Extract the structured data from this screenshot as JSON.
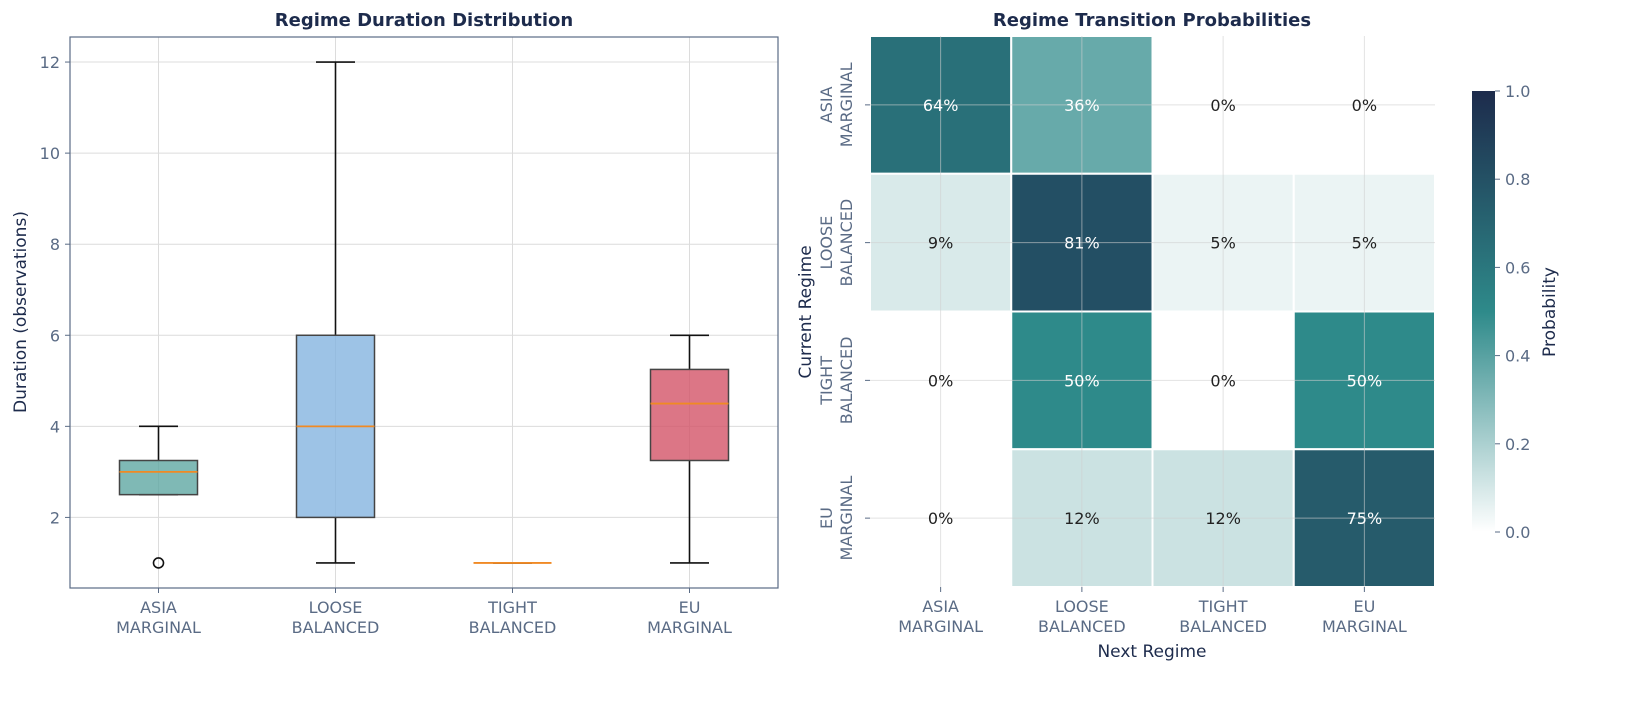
{
  "chart_data": [
    {
      "type": "box",
      "title": "Regime Duration Distribution",
      "xlabel": "",
      "ylabel": "Duration (observations)",
      "ylim": [
        0.45,
        12.55
      ],
      "yticks": [
        2,
        4,
        6,
        8,
        10,
        12
      ],
      "grid": true,
      "categories": [
        [
          "ASIA",
          "MARGINAL"
        ],
        [
          "LOOSE",
          "BALANCED"
        ],
        [
          "TIGHT",
          "BALANCED"
        ],
        [
          "EU",
          "MARGINAL"
        ]
      ],
      "boxes": [
        {
          "whisker_low": 2.5,
          "q1": 2.5,
          "median": 3,
          "q3": 3.25,
          "whisker_high": 4,
          "outliers": [
            1
          ],
          "color": "#5fa8a3"
        },
        {
          "whisker_low": 1,
          "q1": 2,
          "median": 4,
          "q3": 6,
          "whisker_high": 12,
          "outliers": [],
          "color": "#85b4e0"
        },
        {
          "whisker_low": 1,
          "q1": 1,
          "median": 1,
          "q3": 1,
          "whisker_high": 1,
          "outliers": [],
          "color": "#b0c4de"
        },
        {
          "whisker_low": 1,
          "q1": 3.25,
          "median": 4.5,
          "q3": 5.25,
          "whisker_high": 6,
          "outliers": [],
          "color": "#d35468"
        }
      ],
      "median_color": "#f08a24"
    },
    {
      "type": "heatmap",
      "title": "Regime Transition Probabilities",
      "xlabel": "Next Regime",
      "ylabel": "Current Regime",
      "rows": [
        [
          "ASIA",
          "MARGINAL"
        ],
        [
          "LOOSE",
          "BALANCED"
        ],
        [
          "TIGHT",
          "BALANCED"
        ],
        [
          "EU",
          "MARGINAL"
        ]
      ],
      "cols": [
        [
          "ASIA",
          "MARGINAL"
        ],
        [
          "LOOSE",
          "BALANCED"
        ],
        [
          "TIGHT",
          "BALANCED"
        ],
        [
          "EU",
          "MARGINAL"
        ]
      ],
      "values": [
        [
          0.636,
          0.364,
          0,
          0
        ],
        [
          0.091,
          0.81,
          0.048,
          0.048
        ],
        [
          0,
          0.5,
          0,
          0.5
        ],
        [
          0,
          0.125,
          0.125,
          0.75
        ]
      ],
      "labels": [
        [
          "64%",
          "36%",
          "0%",
          "0%"
        ],
        [
          "9%",
          "81%",
          "5%",
          "5%"
        ],
        [
          "0%",
          "50%",
          "0%",
          "50%"
        ],
        [
          "0%",
          "12%",
          "12%",
          "75%"
        ]
      ],
      "colorbar": {
        "label": "Probability",
        "range": [
          0,
          1
        ],
        "ticks": [
          "0.0",
          "0.2",
          "0.4",
          "0.6",
          "0.8",
          "1.0"
        ],
        "colors": [
          "#ffffff",
          "#2e8a8a",
          "#1d2b4c"
        ]
      }
    }
  ]
}
